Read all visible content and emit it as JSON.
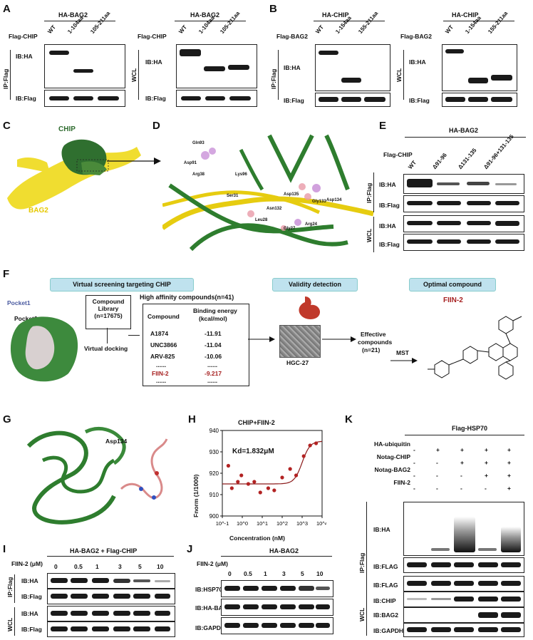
{
  "panels": {
    "A": {
      "label": "A",
      "title1": "HA-BAG2",
      "title2": "HA-BAG2",
      "row_label": "Flag-CHIP",
      "lanes": [
        "WT",
        "1-104aa",
        "105-211aa"
      ],
      "ip": "IP:Flag",
      "wcl": "WCL",
      "ib_ha": "IB:HA",
      "ib_flag": "IB:Flag"
    },
    "B": {
      "label": "B",
      "title1": "HA-CHIP",
      "title2": "HA-CHIP",
      "row_label": "Flag-BAG2",
      "lanes": [
        "WT",
        "1-154aa",
        "155-211aa"
      ],
      "ip": "IP:Flag",
      "wcl": "WCL",
      "ib_ha": "IB:HA",
      "ib_flag": "IB:Flag"
    },
    "C": {
      "label": "C",
      "chip": "CHIP",
      "bag2": "BAG2"
    },
    "D": {
      "label": "D",
      "residues": [
        "Gln93",
        "Asp91",
        "Arg38",
        "Lys96",
        "Ser31",
        "Asn132",
        "Asp135",
        "Gly133",
        "Asp134",
        "Leu28",
        "Arg24",
        "Gly27"
      ]
    },
    "E": {
      "label": "E",
      "title": "HA-BAG2",
      "row_label": "Flag-CHIP",
      "lanes": [
        "WT",
        "Δ91-96",
        "Δ131-135",
        "Δ91-96+131-135"
      ],
      "ip": "IP:Flag",
      "wcl": "WCL",
      "ib_ha": "IB:HA",
      "ib_flag": "IB:Flag"
    },
    "F": {
      "label": "F",
      "box1": "Virtual screening targeting CHIP",
      "box2": "Validity detection",
      "box3": "Optimal compound",
      "pocket1": "Pocket1",
      "pocket2": "Pocket2",
      "library_line1": "Compound",
      "library_line2": "Library",
      "library_n": "(n=17675)",
      "docking": "Virtual docking",
      "high_aff": "High affinity compounds(n=41)",
      "col1": "Compound",
      "col2_1": "Binding energy",
      "col2_2": "(kcal/mol)",
      "rows": [
        {
          "c": "A1874",
          "e": "-11.91"
        },
        {
          "c": "UNC3866",
          "e": "-11.04"
        },
        {
          "c": "ARV-825",
          "e": "-10.06"
        },
        {
          "c": "......",
          "e": "......"
        },
        {
          "c": "FIIN-2",
          "e": "-9.217"
        },
        {
          "c": "......",
          "e": "......"
        }
      ],
      "cell": "HGC-27",
      "effective1": "Effective",
      "effective2": "compounds",
      "effective3": "(n=21)",
      "mst": "MST",
      "optimal": "FIIN-2"
    },
    "G": {
      "label": "G",
      "residue": "Asp134"
    },
    "H": {
      "label": "H",
      "title": "CHIP+FIIN-2",
      "kd": "Kd=1.832μM",
      "ylabel": "Fnorm (1/1000)",
      "xlabel": "Concentration (nM)"
    },
    "I": {
      "label": "I",
      "title": "HA-BAG2 + Flag-CHIP",
      "dose_label": "FIIN-2 (μM)",
      "doses": [
        "0",
        "0.5",
        "1",
        "3",
        "5",
        "10"
      ],
      "ip": "IP:Flag",
      "wcl": "WCL",
      "ib_ha": "IB:HA",
      "ib_flag": "IB:Flag"
    },
    "J": {
      "label": "J",
      "title": "HA-BAG2",
      "dose_label": "FIIN-2 (μM)",
      "doses": [
        "0",
        "0.5",
        "1",
        "3",
        "5",
        "10"
      ],
      "ib1": "IB:HSP70",
      "ib2": "IB:HA-BAG2",
      "ib3": "IB:GAPDH"
    },
    "K": {
      "label": "K",
      "title": "Flag-HSP70",
      "rows": [
        {
          "name": "HA-ubiquitin",
          "v": [
            "-",
            "+",
            "+",
            "+",
            "+"
          ]
        },
        {
          "name": "Notag-CHIP",
          "v": [
            "-",
            "-",
            "+",
            "+",
            "+"
          ]
        },
        {
          "name": "Notag-BAG2",
          "v": [
            "-",
            "-",
            "-",
            "+",
            "+"
          ]
        },
        {
          "name": "FIIN-2",
          "v": [
            "-",
            "-",
            "-",
            "-",
            "+"
          ]
        }
      ],
      "ip": "IP:Flag",
      "wcl": "WCL",
      "ib_ha": "IB:HA",
      "ib_flag": "IB:FLAG",
      "ib_flag2": "IB:FLAG",
      "ib_chip": "IB:CHIP",
      "ib_bag2": "IB:BAG2",
      "ib_gapdh": "IB:GAPDH"
    }
  },
  "chart_data": {
    "type": "scatter",
    "title": "CHIP+FIIN-2",
    "xlabel": "Concentration (nM)",
    "ylabel": "Fnorm (1/1000)",
    "xscale": "log",
    "xlim": [
      0.1,
      10000
    ],
    "ylim": [
      900,
      940
    ],
    "x_ticks": [
      "10^-1",
      "10^0",
      "10^1",
      "10^2",
      "10^3",
      "10^4"
    ],
    "y_ticks": [
      900,
      910,
      920,
      930,
      940
    ],
    "points": [
      [
        0.2,
        923.5
      ],
      [
        0.3,
        913
      ],
      [
        0.6,
        916
      ],
      [
        0.9,
        919
      ],
      [
        2,
        915
      ],
      [
        4,
        916
      ],
      [
        8,
        911
      ],
      [
        20,
        913
      ],
      [
        40,
        912
      ],
      [
        100,
        918
      ],
      [
        250,
        922
      ],
      [
        500,
        919
      ],
      [
        1200,
        928
      ],
      [
        2500,
        933
      ],
      [
        5000,
        934
      ]
    ],
    "fit_color": "#8b1a1a",
    "point_color": "#b22222"
  }
}
